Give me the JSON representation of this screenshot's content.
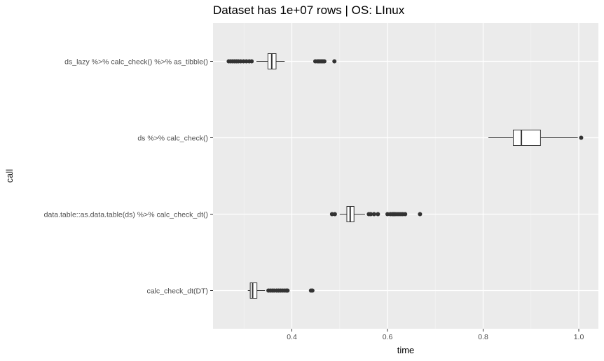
{
  "chart_data": {
    "type": "boxplot",
    "title": "Dataset has 1e+07 rows | OS: LInux",
    "xlabel": "time",
    "ylabel": "call",
    "orientation": "horizontal",
    "xlim": [
      0.23,
      1.04
    ],
    "xticks": [
      0.4,
      0.6,
      0.8,
      1.0
    ],
    "xtick_labels": [
      "0.4",
      "0.6",
      "0.8",
      "1.0"
    ],
    "grid": true,
    "background": "#ebebeb",
    "categories": [
      "ds_lazy %>% calc_check() %>% as_tibble()",
      "ds %>% calc_check()",
      "data.table::as.data.table(ds) %>% calc_check_dt()",
      "calc_check_dt(DT)"
    ],
    "boxes": [
      {
        "category": "ds_lazy %>% calc_check() %>% as_tibble()",
        "whisker_low": 0.326,
        "q1": 0.35,
        "median": 0.358,
        "q3": 0.367,
        "whisker_high": 0.385,
        "outliers": [
          0.268,
          0.272,
          0.276,
          0.28,
          0.284,
          0.288,
          0.293,
          0.299,
          0.305,
          0.311,
          0.316,
          0.449,
          0.453,
          0.456,
          0.459,
          0.462,
          0.465,
          0.468,
          0.489
        ]
      },
      {
        "category": "ds %>% calc_check()",
        "whisker_low": 0.811,
        "q1": 0.863,
        "median": 0.88,
        "q3": 0.92,
        "whisker_high": 0.998,
        "outliers": [
          1.005
        ]
      },
      {
        "category": "data.table::as.data.table(ds) %>% calc_check_dt()",
        "whisker_low": 0.5,
        "q1": 0.515,
        "median": 0.522,
        "q3": 0.53,
        "whisker_high": 0.553,
        "outliers": [
          0.484,
          0.49,
          0.561,
          0.565,
          0.572,
          0.58,
          0.6,
          0.606,
          0.61,
          0.613,
          0.616,
          0.62,
          0.624,
          0.628,
          0.632,
          0.637,
          0.668
        ]
      },
      {
        "category": "calc_check_dt(DT)",
        "whisker_low": 0.308,
        "q1": 0.313,
        "median": 0.318,
        "q3": 0.327,
        "whisker_high": 0.344,
        "outliers": [
          0.351,
          0.355,
          0.359,
          0.363,
          0.368,
          0.372,
          0.376,
          0.38,
          0.384,
          0.388,
          0.391,
          0.44,
          0.443
        ]
      }
    ]
  }
}
